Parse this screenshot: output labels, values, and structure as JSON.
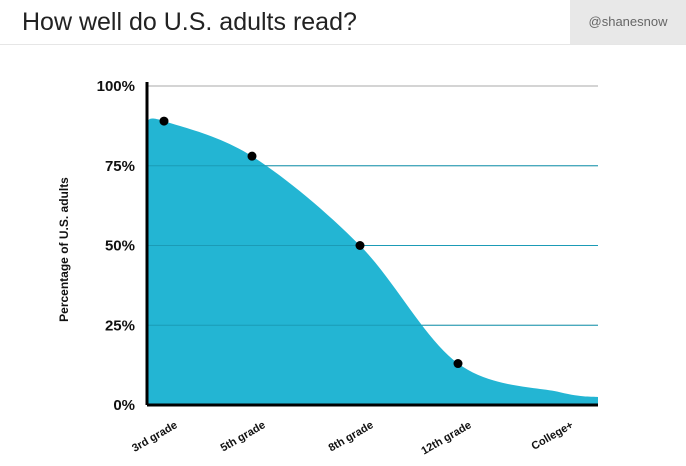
{
  "header": {
    "title": "How well do U.S. adults read?",
    "handle": "@shanesnow"
  },
  "colors": {
    "area_fill": "#23b5d3",
    "marker": "#000000",
    "axis": "#000000",
    "grid": "#a9a9a9"
  },
  "chart_data": {
    "type": "area",
    "title": "How well do U.S. adults read?",
    "xlabel": "",
    "ylabel": "Percentage of U.S. adults",
    "ylim": [
      0,
      100
    ],
    "yticks": [
      {
        "value": 0,
        "label": "0%"
      },
      {
        "value": 25,
        "label": "25%"
      },
      {
        "value": 50,
        "label": "50%"
      },
      {
        "value": 75,
        "label": "75%"
      },
      {
        "value": 100,
        "label": "100%"
      }
    ],
    "categories": [
      "3rd grade",
      "5th grade",
      "8th grade",
      "12th grade",
      "College+"
    ],
    "points": [
      {
        "category": "3rd grade",
        "value": 89
      },
      {
        "category": "5th grade",
        "value": 78
      },
      {
        "category": "8th grade",
        "value": 50
      },
      {
        "category": "12th grade",
        "value": 13
      }
    ],
    "curve": [
      {
        "category": "3rd grade",
        "value": 89
      },
      {
        "category": "5th grade",
        "value": 78
      },
      {
        "category": "8th grade",
        "value": 50
      },
      {
        "category": "12th grade",
        "value": 13
      },
      {
        "category": "College+",
        "value": 4
      }
    ],
    "grid": true,
    "legend": "none"
  }
}
